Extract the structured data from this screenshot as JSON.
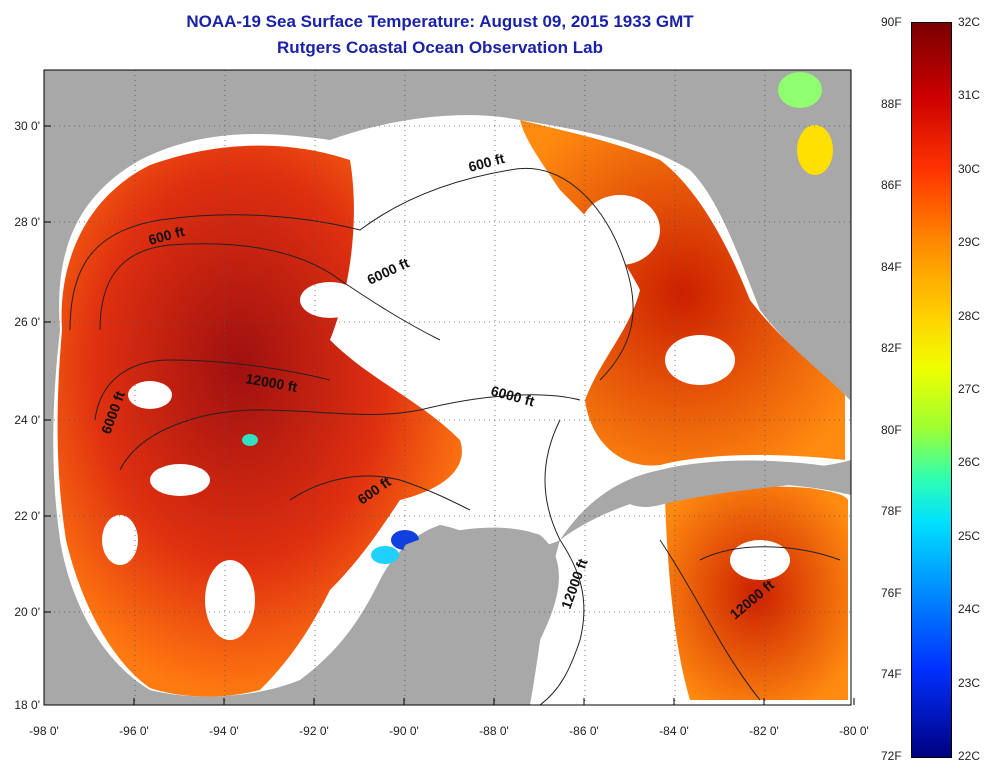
{
  "header": {
    "title": "NOAA-19 Sea Surface Temperature:  August 09, 2015 1933 GMT",
    "subtitle": "Rutgers Coastal Ocean Observation Lab"
  },
  "map": {
    "x_ticks": [
      "-98 0'",
      "-96 0'",
      "-94 0'",
      "-92 0'",
      "-90 0'",
      "-88 0'",
      "-86 0'",
      "-84 0'",
      "-82 0'",
      "-80 0'"
    ],
    "y_ticks": [
      "30 0'",
      "28 0'",
      "26 0'",
      "24 0'",
      "22 0'",
      "20 0'",
      "18 0'"
    ],
    "contour_labels": [
      "600 ft",
      "600 ft",
      "6000 ft",
      "6000 ft",
      "12000 ft",
      "6000 ft",
      "600 ft",
      "12000 ft",
      "12000 ft"
    ],
    "colors": {
      "land": "#a8a8a8",
      "no_data": "#ffffff"
    }
  },
  "colorbar": {
    "fahrenheit": [
      "90F",
      "88F",
      "86F",
      "84F",
      "82F",
      "80F",
      "78F",
      "76F",
      "74F",
      "72F"
    ],
    "celsius": [
      "32C",
      "31C",
      "30C",
      "29C",
      "28C",
      "27C",
      "26C",
      "25C",
      "24C",
      "23C",
      "22C"
    ]
  }
}
